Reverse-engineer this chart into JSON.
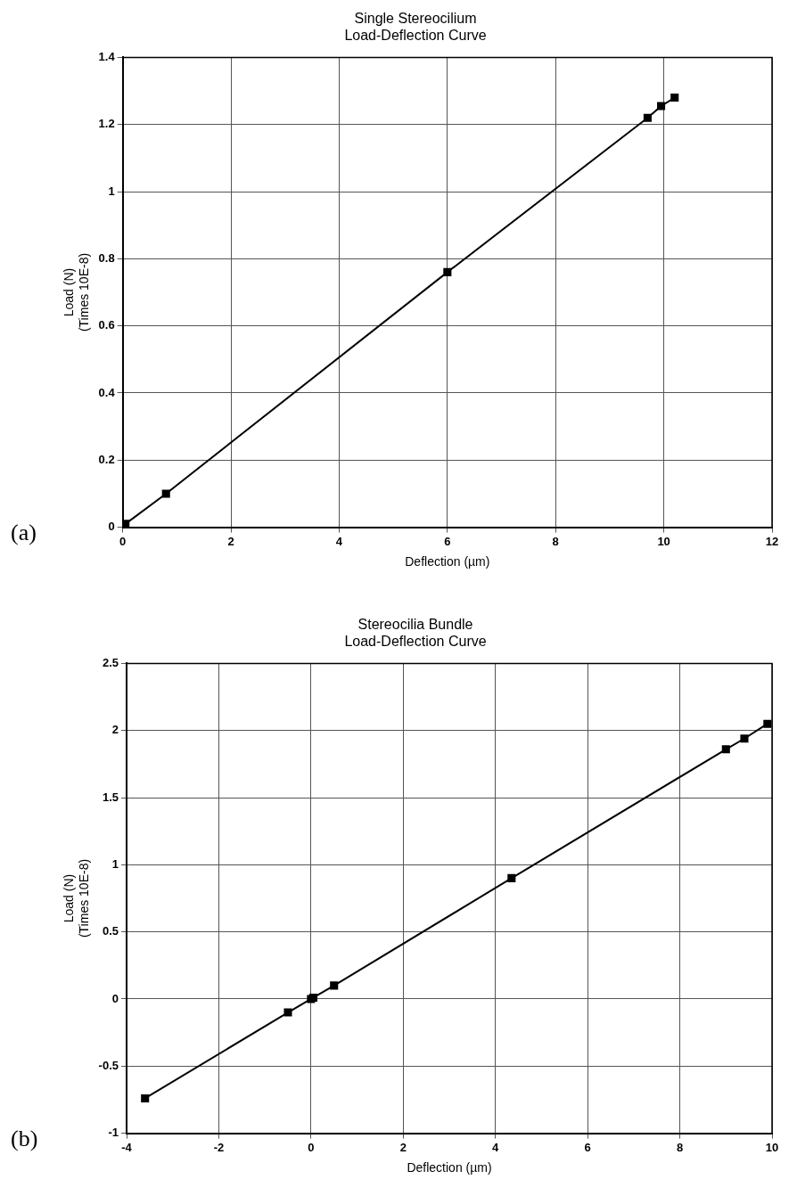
{
  "chart_data": [
    {
      "type": "line",
      "title": "Single Stereocilium\nLoad-Deflection Curve",
      "xlabel": "Deflection (µm)",
      "ylabel": "Load (N)\n(Times 10E-8)",
      "annotations": [
        "(a)"
      ],
      "x": [
        0,
        0.05,
        0.8,
        6,
        9.7,
        9.95,
        10.2
      ],
      "series": [
        {
          "color": "#000000",
          "values": [
            0,
            0.01,
            0.1,
            0.76,
            1.22,
            1.255,
            1.28
          ]
        }
      ],
      "xlim": [
        0,
        12
      ],
      "xticks": [
        0,
        2,
        4,
        6,
        8,
        10,
        12
      ],
      "ylim": [
        0,
        1.4
      ],
      "yticks": [
        0,
        0.2,
        0.4,
        0.6,
        0.8,
        1,
        1.2,
        1.4
      ],
      "grid": true,
      "legend": false,
      "marker": "square",
      "line_style": "solid"
    },
    {
      "type": "line",
      "title": "Stereocilia Bundle\nLoad-Deflection Curve",
      "xlabel": "Deflection (µm)",
      "ylabel": "Load (N)\n(Times 10E-8)",
      "annotations": [
        "(b)"
      ],
      "x": [
        -3.6,
        -0.5,
        -0.05,
        0,
        0.05,
        0.5,
        4.35,
        9,
        9.4,
        9.9
      ],
      "series": [
        {
          "color": "#000000",
          "values": [
            -0.74,
            -0.1,
            null,
            0,
            0.01,
            0.1,
            0.9,
            1.86,
            1.94,
            2.05
          ]
        }
      ],
      "xlim": [
        -4,
        10
      ],
      "xticks": [
        -4,
        -2,
        0,
        2,
        4,
        6,
        8,
        10
      ],
      "ylim": [
        -1,
        2.5
      ],
      "yticks": [
        -1,
        -0.5,
        0,
        0.5,
        1,
        1.5,
        2,
        2.5
      ],
      "grid": true,
      "legend": false,
      "marker": "square",
      "line_style": "solid"
    }
  ]
}
